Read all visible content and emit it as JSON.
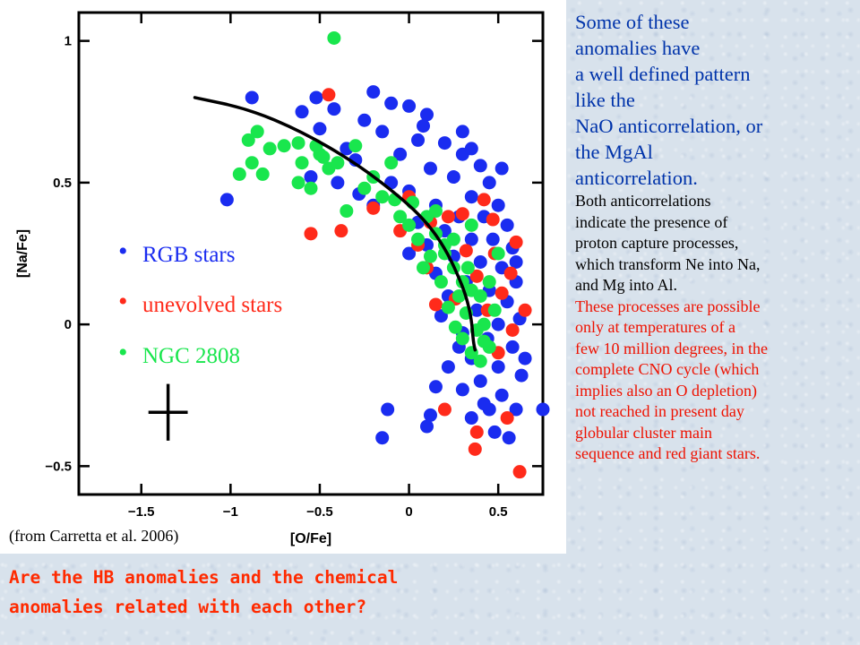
{
  "chart_data": {
    "type": "scatter",
    "title": "",
    "xlabel": "[O/Fe]",
    "ylabel": "[Na/Fe]",
    "xlim": [
      -1.85,
      0.75
    ],
    "ylim": [
      -0.6,
      1.1
    ],
    "x_ticks": [
      -1.5,
      -1,
      -0.5,
      0,
      0.5
    ],
    "x_tick_labels": [
      "-1.5",
      "-1",
      "-0.5",
      "0",
      "0.5"
    ],
    "y_ticks": [
      -0.5,
      0,
      0.5,
      1
    ],
    "y_tick_labels": [
      "-0.5",
      "0",
      "0.5",
      "1"
    ],
    "legend_position": "left-middle",
    "series": [
      {
        "name": "RGB stars",
        "color": "#1a2cf0",
        "points": [
          [
            -0.88,
            0.8
          ],
          [
            -1.02,
            0.44
          ],
          [
            -0.52,
            0.8
          ],
          [
            -0.5,
            0.69
          ],
          [
            -0.2,
            0.82
          ],
          [
            -0.1,
            0.78
          ],
          [
            0.0,
            0.77
          ],
          [
            0.1,
            0.74
          ],
          [
            -0.15,
            0.68
          ],
          [
            0.05,
            0.65
          ],
          [
            0.2,
            0.64
          ],
          [
            0.3,
            0.6
          ],
          [
            -0.05,
            0.6
          ],
          [
            -0.3,
            0.58
          ],
          [
            0.4,
            0.56
          ],
          [
            0.12,
            0.55
          ],
          [
            0.25,
            0.52
          ],
          [
            0.45,
            0.5
          ],
          [
            -0.1,
            0.5
          ],
          [
            0.0,
            0.47
          ],
          [
            0.35,
            0.45
          ],
          [
            0.5,
            0.42
          ],
          [
            0.15,
            0.42
          ],
          [
            -0.2,
            0.42
          ],
          [
            0.28,
            0.38
          ],
          [
            0.42,
            0.38
          ],
          [
            0.05,
            0.36
          ],
          [
            0.55,
            0.35
          ],
          [
            0.2,
            0.33
          ],
          [
            0.35,
            0.3
          ],
          [
            0.47,
            0.3
          ],
          [
            0.1,
            0.28
          ],
          [
            0.58,
            0.27
          ],
          [
            0.0,
            0.25
          ],
          [
            0.25,
            0.24
          ],
          [
            0.4,
            0.22
          ],
          [
            0.52,
            0.2
          ],
          [
            0.15,
            0.18
          ],
          [
            0.32,
            0.15
          ],
          [
            0.6,
            0.15
          ],
          [
            0.45,
            0.12
          ],
          [
            0.22,
            0.1
          ],
          [
            0.55,
            0.08
          ],
          [
            0.38,
            0.05
          ],
          [
            0.18,
            0.03
          ],
          [
            0.5,
            0.0
          ],
          [
            0.62,
            0.02
          ],
          [
            0.3,
            -0.03
          ],
          [
            0.44,
            -0.05
          ],
          [
            0.58,
            -0.08
          ],
          [
            0.35,
            -0.12
          ],
          [
            0.5,
            -0.15
          ],
          [
            0.22,
            -0.15
          ],
          [
            0.63,
            -0.18
          ],
          [
            0.4,
            -0.2
          ],
          [
            0.3,
            -0.23
          ],
          [
            0.52,
            -0.25
          ],
          [
            0.45,
            -0.3
          ],
          [
            0.6,
            -0.3
          ],
          [
            0.35,
            -0.33
          ],
          [
            0.48,
            -0.38
          ],
          [
            0.42,
            -0.28
          ],
          [
            0.75,
            -0.3
          ],
          [
            0.56,
            -0.4
          ],
          [
            0.12,
            -0.32
          ],
          [
            -0.15,
            -0.4
          ],
          [
            0.1,
            -0.36
          ],
          [
            -0.12,
            -0.3
          ],
          [
            0.65,
            -0.12
          ],
          [
            0.6,
            0.22
          ],
          [
            0.52,
            0.55
          ],
          [
            0.35,
            0.62
          ],
          [
            -0.35,
            0.62
          ],
          [
            -0.42,
            0.76
          ],
          [
            -0.25,
            0.72
          ],
          [
            0.08,
            0.7
          ],
          [
            -0.6,
            0.75
          ],
          [
            -0.55,
            0.52
          ],
          [
            -0.4,
            0.5
          ],
          [
            -0.28,
            0.46
          ],
          [
            0.3,
            0.68
          ],
          [
            0.28,
            -0.08
          ],
          [
            0.15,
            -0.22
          ]
        ]
      },
      {
        "name": "unevolved stars",
        "color": "#ff2a1a",
        "points": [
          [
            -0.45,
            0.81
          ],
          [
            -0.2,
            0.41
          ],
          [
            0.0,
            0.45
          ],
          [
            0.12,
            0.36
          ],
          [
            -0.38,
            0.33
          ],
          [
            -0.55,
            0.32
          ],
          [
            0.3,
            0.39
          ],
          [
            0.42,
            0.44
          ],
          [
            0.48,
            0.25
          ],
          [
            0.6,
            0.29
          ],
          [
            0.57,
            0.18
          ],
          [
            0.38,
            0.17
          ],
          [
            0.52,
            0.11
          ],
          [
            0.26,
            0.09
          ],
          [
            0.44,
            0.05
          ],
          [
            0.58,
            -0.02
          ],
          [
            0.15,
            0.07
          ],
          [
            -0.05,
            0.33
          ],
          [
            0.05,
            0.28
          ],
          [
            0.32,
            0.26
          ],
          [
            0.65,
            0.05
          ],
          [
            0.5,
            -0.1
          ],
          [
            0.38,
            -0.38
          ],
          [
            0.55,
            -0.33
          ],
          [
            0.2,
            -0.3
          ],
          [
            0.62,
            -0.52
          ],
          [
            0.37,
            -0.44
          ],
          [
            0.1,
            0.2
          ],
          [
            0.22,
            0.38
          ],
          [
            0.47,
            0.37
          ]
        ]
      },
      {
        "name": "NGC 2808",
        "color": "#19e64d",
        "points": [
          [
            -0.42,
            1.01
          ],
          [
            -0.78,
            0.62
          ],
          [
            -0.88,
            0.57
          ],
          [
            -0.95,
            0.53
          ],
          [
            -0.82,
            0.53
          ],
          [
            -0.7,
            0.63
          ],
          [
            -0.85,
            0.68
          ],
          [
            -0.9,
            0.65
          ],
          [
            -0.62,
            0.64
          ],
          [
            -0.5,
            0.6
          ],
          [
            -0.45,
            0.55
          ],
          [
            -0.55,
            0.48
          ],
          [
            -0.62,
            0.5
          ],
          [
            -0.48,
            0.59
          ],
          [
            -0.52,
            0.63
          ],
          [
            -0.3,
            0.63
          ],
          [
            -0.1,
            0.57
          ],
          [
            -0.2,
            0.52
          ],
          [
            -0.15,
            0.45
          ],
          [
            -0.35,
            0.4
          ],
          [
            -0.08,
            0.44
          ],
          [
            0.02,
            0.43
          ],
          [
            0.1,
            0.38
          ],
          [
            0.15,
            0.32
          ],
          [
            0.2,
            0.25
          ],
          [
            0.25,
            0.2
          ],
          [
            0.3,
            0.15
          ],
          [
            0.35,
            0.12
          ],
          [
            0.28,
            0.1
          ],
          [
            0.4,
            0.1
          ],
          [
            0.22,
            0.06
          ],
          [
            0.32,
            0.04
          ],
          [
            0.42,
            0.0
          ],
          [
            0.38,
            -0.02
          ],
          [
            0.3,
            -0.05
          ],
          [
            0.45,
            -0.08
          ],
          [
            0.35,
            -0.1
          ],
          [
            0.4,
            -0.13
          ],
          [
            0.18,
            0.15
          ],
          [
            0.12,
            0.24
          ],
          [
            0.05,
            0.3
          ],
          [
            0.45,
            0.15
          ],
          [
            0.48,
            0.05
          ],
          [
            0.25,
            0.3
          ],
          [
            -0.05,
            0.38
          ],
          [
            -0.25,
            0.48
          ],
          [
            0.0,
            0.35
          ],
          [
            0.15,
            0.4
          ],
          [
            0.33,
            0.2
          ],
          [
            0.5,
            0.25
          ],
          [
            -0.4,
            0.57
          ],
          [
            0.26,
            -0.01
          ],
          [
            0.42,
            -0.06
          ],
          [
            0.2,
            0.28
          ],
          [
            0.35,
            0.35
          ],
          [
            -0.6,
            0.57
          ],
          [
            0.08,
            0.2
          ]
        ]
      }
    ],
    "trend_curve": [
      [
        -1.2,
        0.8
      ],
      [
        -0.9,
        0.76
      ],
      [
        -0.6,
        0.68
      ],
      [
        -0.3,
        0.57
      ],
      [
        -0.05,
        0.45
      ],
      [
        0.1,
        0.36
      ],
      [
        0.2,
        0.27
      ],
      [
        0.27,
        0.18
      ],
      [
        0.32,
        0.1
      ],
      [
        0.35,
        0.02
      ],
      [
        0.36,
        -0.06
      ],
      [
        0.37,
        -0.09
      ]
    ],
    "error_bar": {
      "x": -1.35,
      "y": -0.31,
      "x_err": 0.11,
      "y_err": 0.1
    }
  },
  "legend_items": [
    {
      "label": "RGB stars",
      "color": "#1a2cf0"
    },
    {
      "label": "unevolved stars",
      "color": "#ff2a1a"
    },
    {
      "label": "NGC 2808",
      "color": "#19e64d"
    }
  ],
  "source_note": "(from Carretta et al. 2006)",
  "question_lines": [
    "Are the HB anomalies and the chemical",
    "anomalies related with each other?"
  ],
  "right_text": {
    "big_lines": [
      "Some of these",
      "anomalies have",
      "a well defined pattern",
      "like the",
      "NaO anticorrelation, or",
      "the MgAl",
      "anticorrelation."
    ],
    "black_lines": [
      "Both anticorrelations",
      "indicate the presence of",
      "proton capture processes,",
      "which transform  Ne into Na,",
      "and Mg into Al."
    ],
    "red_lines": [
      "These processes are  possible",
      "only at temperatures of a",
      "few 10 million degrees, in the",
      "complete CNO cycle (which",
      "implies also an O depletion)",
      "not reached in present day",
      "globular cluster main",
      "sequence and red giant  stars."
    ]
  },
  "colors": {
    "blue_text": "#0033aa",
    "red_text": "#ee1100",
    "question_text": "#ff2a00"
  }
}
